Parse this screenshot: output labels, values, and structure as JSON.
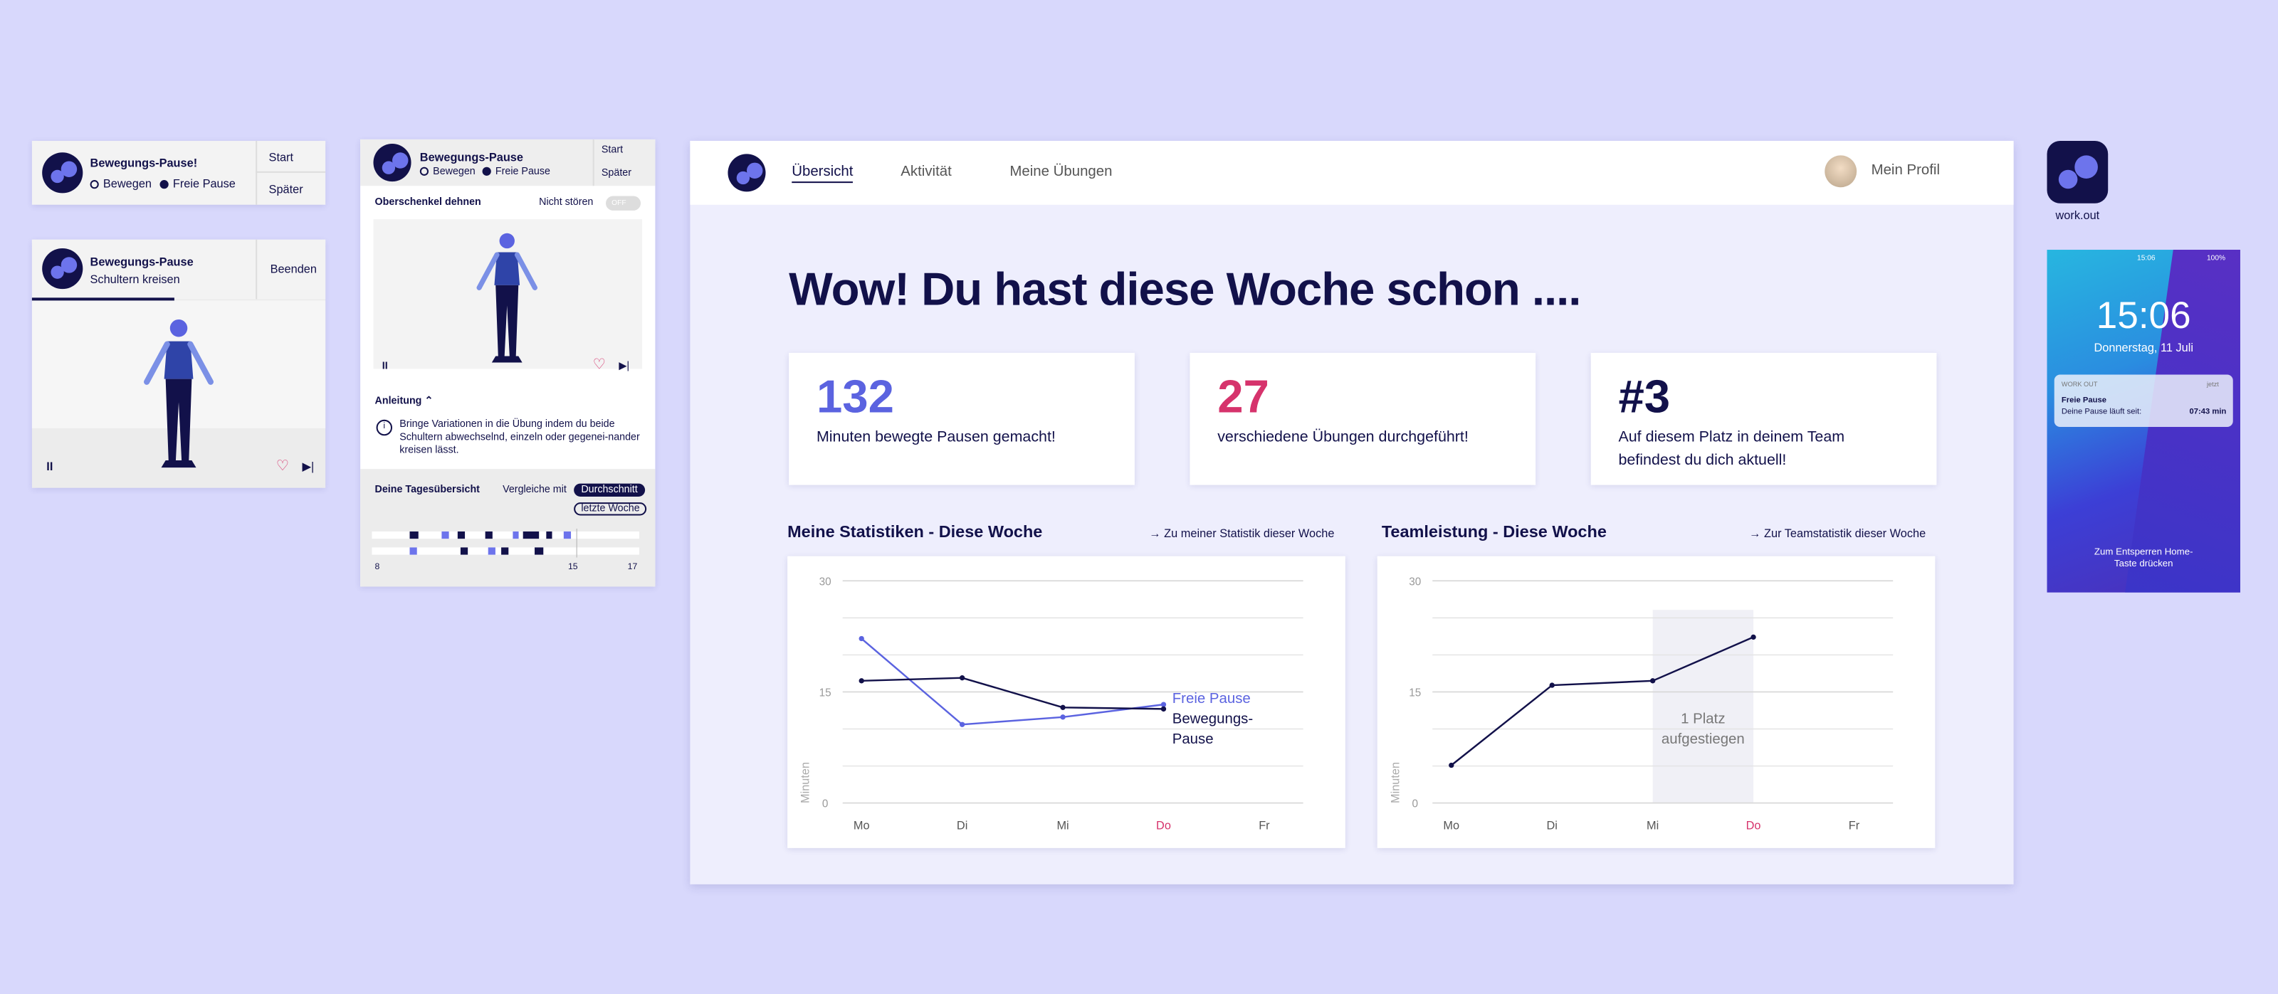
{
  "widget_small": {
    "title": "Bewegungs-Pause!",
    "options": [
      "Bewegen",
      "Freie Pause"
    ],
    "actions": [
      "Start",
      "Später"
    ]
  },
  "widget_active": {
    "title": "Bewegungs-Pause",
    "subtitle": "Schultern kreisen",
    "action": "Beenden"
  },
  "widget_detail": {
    "title": "Bewegungs-Pause",
    "options": [
      "Bewegen",
      "Freie Pause"
    ],
    "actions": [
      "Start",
      "Später"
    ],
    "exercise": "Oberschenkel dehnen",
    "dnd_label": "Nicht stören",
    "dnd_state": "OFF",
    "instructions_label": "Anleitung",
    "instructions": "Bringe Variationen in die Übung indem du beide Schultern abwechselnd, einzeln oder gegenei-nander kreisen lässt.",
    "overview_title": "Deine Tagesübersicht",
    "compare_label": "Vergleiche mit",
    "compare_options": [
      "Durchschnitt",
      "letzte Woche"
    ],
    "timeline_ticks": [
      8,
      15,
      17
    ]
  },
  "nav": {
    "items": [
      "Übersicht",
      "Aktivität",
      "Meine Übungen"
    ],
    "profile": "Mein Profil"
  },
  "headline": "Wow! Du hast diese Woche schon ....",
  "stats": [
    {
      "value": 132,
      "text": "Minuten bewegte Pausen gemacht!",
      "color": "#5b63e0"
    },
    {
      "value": 27,
      "text": "verschiedene Übungen durchgeführt!",
      "color": "#d6336c"
    },
    {
      "value": "#3",
      "text": "Auf diesem Platz in deinem Team befindest du dich aktuell!",
      "color": "#12114a"
    }
  ],
  "charts": [
    {
      "type": "line",
      "title": "Meine Statistiken - Diese Woche",
      "link": "Zu meiner Statistik dieser Woche",
      "categories": [
        "Mo",
        "Di",
        "Mi",
        "Do",
        "Fr"
      ],
      "highlight": "Do",
      "ylabel": "Minuten",
      "ylim": [
        0,
        30
      ],
      "yticks": [
        0,
        15,
        30
      ],
      "minor_yticks": [
        5,
        10,
        20,
        25
      ],
      "series": [
        {
          "name": "Freie Pause",
          "color": "#5b63e0",
          "values": [
            22.2,
            10.6,
            11.6,
            13.3,
            null
          ]
        },
        {
          "name": "Bewegungs-Pause",
          "color": "#12114a",
          "values": [
            16.5,
            16.9,
            12.9,
            12.7,
            null
          ]
        }
      ]
    },
    {
      "type": "line",
      "title": "Teamleistung - Diese Woche",
      "link": "Zur Teamstatistik dieser Woche",
      "categories": [
        "Mo",
        "Di",
        "Mi",
        "Do",
        "Fr"
      ],
      "highlight": "Do",
      "ylabel": "Minuten",
      "ylim": [
        0,
        30
      ],
      "yticks": [
        0,
        15,
        30
      ],
      "minor_yticks": [
        5,
        10,
        20,
        25
      ],
      "annotation": {
        "text": "1 Platz aufgestiegen",
        "from": "Mi",
        "to": "Do"
      },
      "series": [
        {
          "color": "#12114a",
          "values": [
            5.1,
            15.9,
            16.5,
            22.4,
            null
          ]
        }
      ]
    }
  ],
  "app": {
    "name": "work.out"
  },
  "phone": {
    "status_time": "15:06",
    "battery": "100%",
    "time": "15:06",
    "date": "Donnerstag, 11 Juli",
    "notification": {
      "app": "WORK OUT",
      "when": "jetzt",
      "title": "Freie Pause",
      "text": "Deine Pause läuft seit:",
      "timer": "07:43 min"
    },
    "unlock": "Zum Entsperren Home-Taste drücken"
  }
}
